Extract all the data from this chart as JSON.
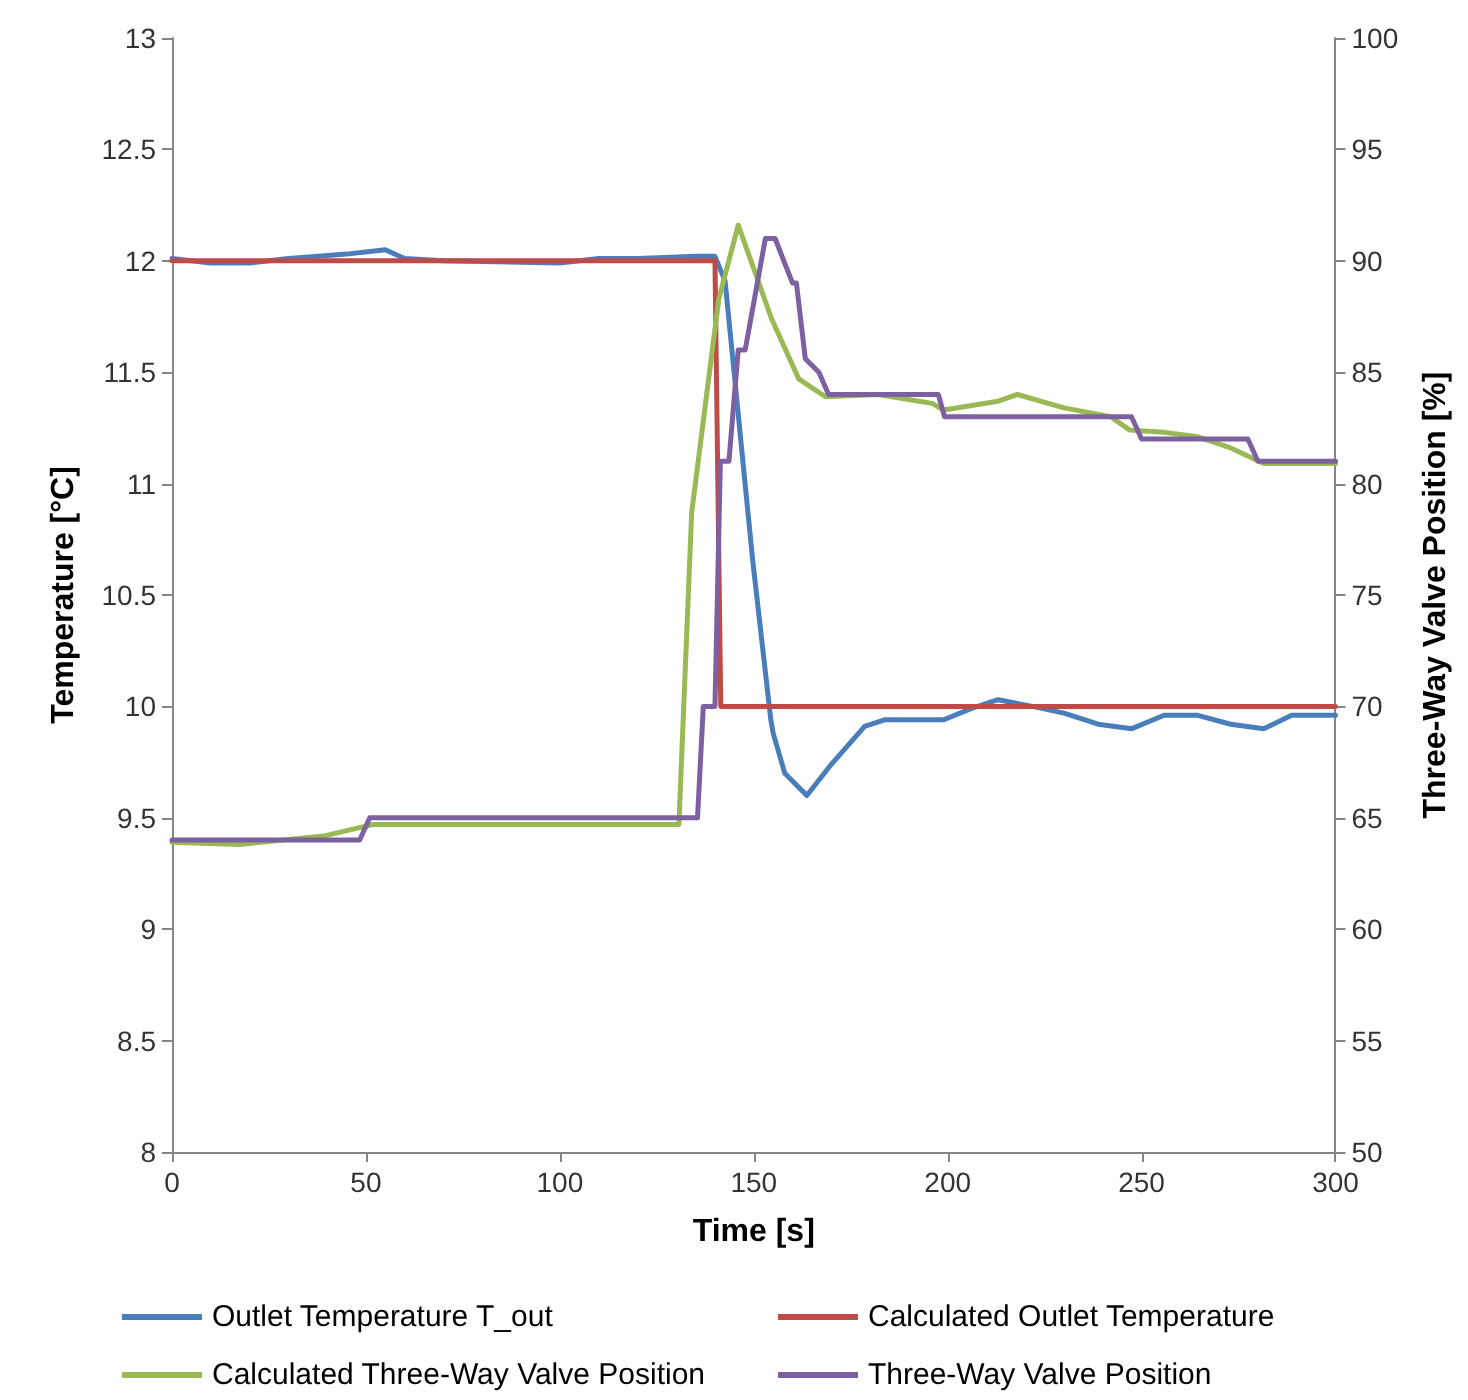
{
  "chart_data": {
    "type": "line",
    "xlabel": "Time [s]",
    "ylabel": "Temperature [°C]",
    "y2label": "Three-Way Valve Position [%]",
    "xlim": [
      0,
      300
    ],
    "xticks": [
      0,
      50,
      100,
      150,
      200,
      250,
      300
    ],
    "ylim": [
      8,
      13
    ],
    "yticks": [
      8,
      8.5,
      9,
      9.5,
      10,
      10.5,
      11,
      11.5,
      12,
      12.5,
      13
    ],
    "y2lim": [
      50,
      100
    ],
    "y2ticks": [
      50,
      55,
      60,
      65,
      70,
      75,
      80,
      85,
      90,
      95,
      100
    ],
    "grid": false,
    "legend": "bottom",
    "marker": "none",
    "line_style": "solid",
    "series": [
      {
        "name": "Outlet Temperature T_out",
        "color": "#4a7ebb",
        "x": [
          0,
          10,
          20,
          30,
          45,
          55,
          60,
          70,
          100,
          110,
          120,
          135,
          140,
          142.6,
          149.7,
          154.4,
          155,
          158,
          163.7,
          170,
          178.6,
          183.7,
          199,
          206,
          213,
          221.8,
          230,
          238.8,
          247.5,
          255.8,
          264.5,
          273,
          281.5,
          288.7,
          299,
          300
        ],
        "values": [
          12.01,
          11.99,
          11.99,
          12.01,
          12.03,
          12.05,
          12.01,
          12.0,
          11.99,
          12.01,
          12.01,
          12.02,
          12.02,
          11.91,
          10.66,
          9.94,
          9.88,
          9.7,
          9.6,
          9.74,
          9.91,
          9.94,
          9.94,
          9.99,
          10.03,
          10.0,
          9.97,
          9.92,
          9.9,
          9.96,
          9.96,
          9.92,
          9.9,
          9.96,
          9.96,
          9.96
        ]
      },
      {
        "name": "Calculated Outlet Temperature",
        "color": "#be4b48",
        "x": [
          0,
          140,
          141.5,
          300
        ],
        "values": [
          12,
          12,
          10,
          10
        ]
      },
      {
        "name": "Calculated Three-Way Valve Position",
        "color": "#98b954",
        "axis": "y2",
        "x": [
          0,
          17.5,
          39.6,
          51.8,
          130.7,
          134,
          141,
          146,
          154.6,
          161.6,
          168.5,
          182,
          196,
          199,
          213,
          218,
          230,
          242,
          247,
          256,
          264.5,
          273,
          281.5,
          299,
          300
        ],
        "values": [
          63.9,
          63.8,
          64.2,
          64.7,
          64.7,
          78.7,
          88.3,
          91.6,
          87.4,
          84.7,
          83.9,
          84.0,
          83.6,
          83.3,
          83.7,
          84.0,
          83.4,
          83.0,
          82.4,
          82.3,
          82.1,
          81.6,
          80.9,
          80.9,
          80.9
        ]
      },
      {
        "name": "Three-Way Valve Position",
        "color": "#7d60a0",
        "axis": "y2",
        "x": [
          0,
          48.4,
          51,
          135.5,
          137,
          140,
          141.4,
          143.6,
          146,
          147.8,
          153,
          155.5,
          160,
          161,
          163.3,
          166.8,
          169.3,
          197.6,
          199.2,
          247.4,
          250,
          277.4,
          280,
          300
        ],
        "values": [
          64,
          64,
          65,
          65,
          70,
          70,
          81,
          81,
          86,
          86,
          91,
          91,
          89,
          89,
          85.6,
          85,
          84,
          84,
          83,
          83,
          82,
          82,
          81,
          81
        ]
      }
    ]
  }
}
